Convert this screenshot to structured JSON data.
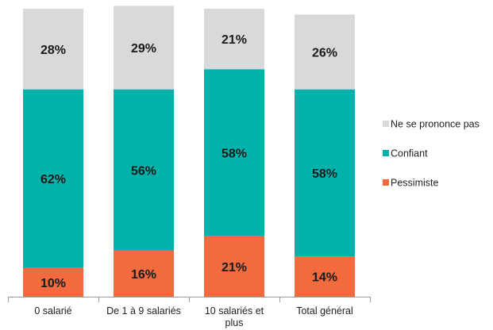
{
  "chart_data": {
    "type": "bar",
    "stacked": true,
    "percent": true,
    "categories": [
      "0 salarié",
      "De 1 à 9 salariés",
      "10 salariés et plus",
      "Total général"
    ],
    "category_lines": [
      [
        "0 salarié"
      ],
      [
        "De 1 à 9 salariés"
      ],
      [
        "10 salariés et",
        "plus"
      ],
      [
        "Total général"
      ]
    ],
    "series": [
      {
        "name": "Pessimiste",
        "color": "#f26a3d",
        "values": [
          10,
          16,
          21,
          14
        ]
      },
      {
        "name": "Confiant",
        "color": "#00b2a9",
        "values": [
          62,
          56,
          58,
          58
        ]
      },
      {
        "name": "Ne se prononce pas",
        "color": "#d9d9d9",
        "values": [
          28,
          29,
          21,
          26
        ]
      }
    ],
    "ylim": [
      0,
      100
    ],
    "legend_position": "right",
    "legend_order": [
      "Ne se prononce pas",
      "Confiant",
      "Pessimiste"
    ],
    "grid": false,
    "title": "",
    "xlabel": "",
    "ylabel": ""
  }
}
